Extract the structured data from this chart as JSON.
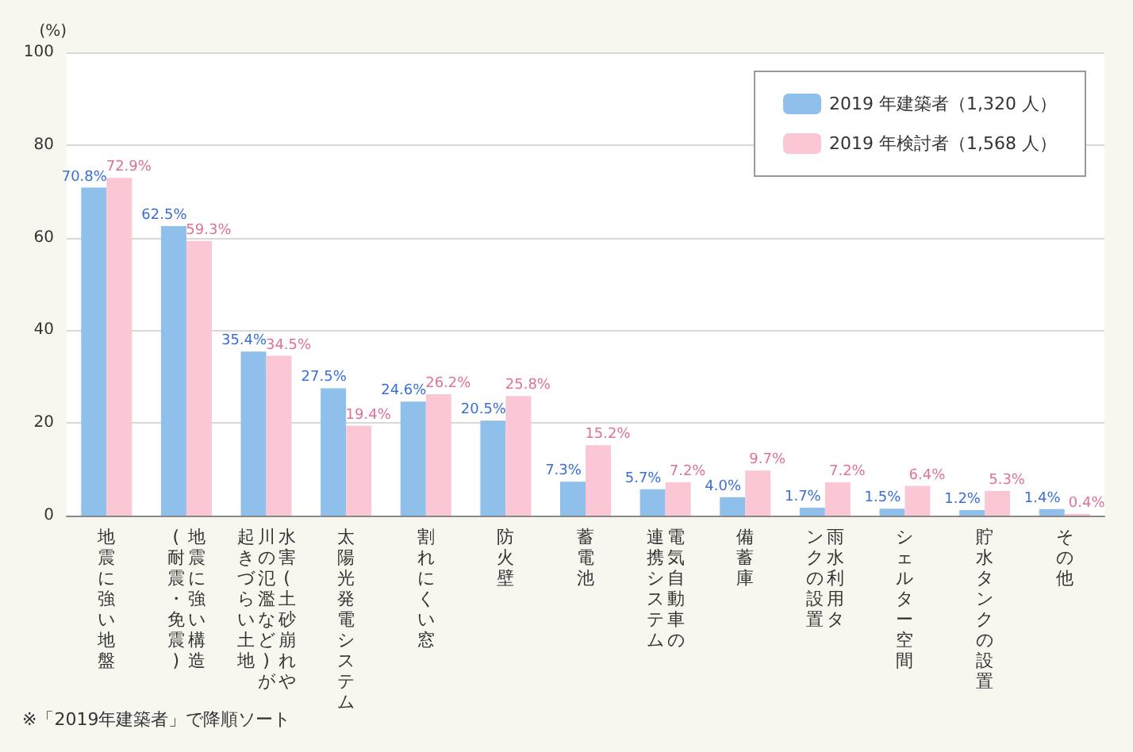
{
  "chart_data": {
    "type": "bar",
    "ylabel": "(%)",
    "categories": [
      "地震に強い地盤",
      "地震に強い構造(耐震・免震)",
      "水害(土砂崩れや川の氾濫など)が起きづらい土地",
      "太陽光発電システム",
      "割れにくい窓",
      "防火壁",
      "蓄電池",
      "電気自動車の連携システム",
      "備蓄庫",
      "雨水利用タンクの設置",
      "シェルター空間",
      "貯水タンクの設置",
      "その他"
    ],
    "series": [
      {
        "name": "2019 年建築者（1,320 人）",
        "color": "#8fc0ec",
        "values": [
          70.8,
          62.5,
          35.4,
          27.5,
          24.6,
          20.5,
          7.3,
          5.7,
          4.0,
          1.7,
          1.5,
          1.2,
          1.4
        ],
        "value_labels": [
          "70.8%",
          "62.5%",
          "35.4%",
          "27.5%",
          "24.6%",
          "20.5%",
          "7.3%",
          "5.7%",
          "4.0%",
          "1.7%",
          "1.5%",
          "1.2%",
          "1.4%"
        ]
      },
      {
        "name": "2019 年検討者（1,568 人）",
        "color": "#fbc7d5",
        "values": [
          72.9,
          59.3,
          34.5,
          19.4,
          26.2,
          25.8,
          15.2,
          7.2,
          9.7,
          7.2,
          6.4,
          5.3,
          0.4
        ],
        "value_labels": [
          "72.9%",
          "59.3%",
          "34.5%",
          "19.4%",
          "26.2%",
          "25.8%",
          "15.2%",
          "7.2%",
          "9.7%",
          "7.2%",
          "6.4%",
          "5.3%",
          "0.4%"
        ]
      }
    ],
    "ylim": [
      0,
      100
    ],
    "yticks": [
      0,
      20,
      40,
      60,
      80,
      100
    ],
    "grid": "y",
    "legend": "top right",
    "annotations": [
      "※「2019年建築者」で降順ソート"
    ]
  }
}
